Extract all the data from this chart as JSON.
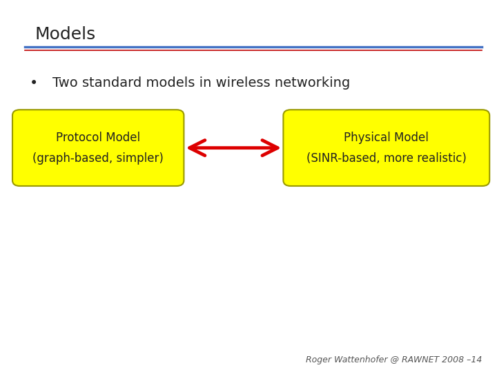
{
  "title": "Models",
  "title_fontsize": 18,
  "title_color": "#222222",
  "bullet_text": "Two standard models in wireless networking",
  "bullet_fontsize": 14,
  "box_left_text1": "Protocol Model",
  "box_left_text2": "(graph-based, simpler)",
  "box_right_text1": "Physical Model",
  "box_right_text2": "(SINR-based, more realistic)",
  "box_color": "#FFFF00",
  "box_edge_color": "#999900",
  "arrow_color": "#DD0000",
  "footer_text": "Roger Wattenhofer @ RAWNET 2008 –14",
  "footer_fontsize": 9,
  "footer_color": "#555555",
  "separator_color_top": "#4472C4",
  "separator_color_bottom": "#C00000",
  "background_color": "#FFFFFF"
}
